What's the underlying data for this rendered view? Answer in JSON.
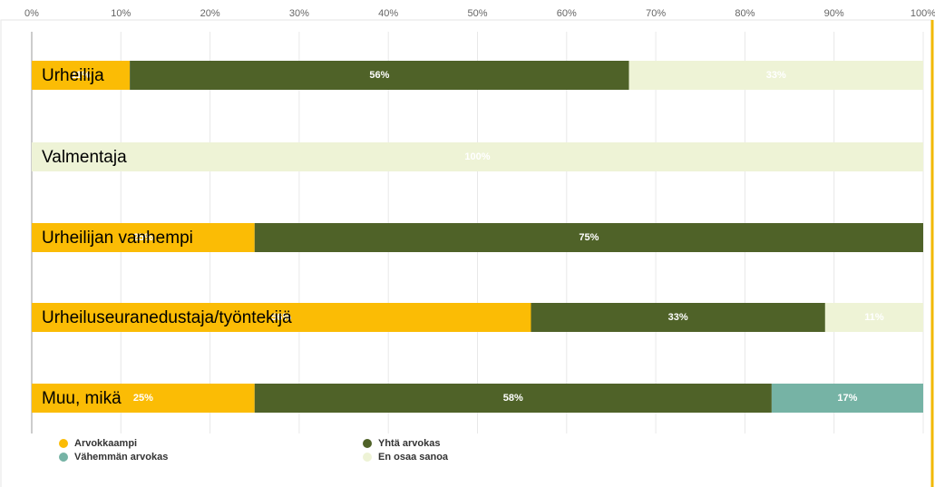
{
  "chart_data": {
    "type": "stacked-bar",
    "categories": [
      "Urheilija",
      "Valmentaja",
      "Urheilijan vanhempi",
      "Urheiluseuranedustaja/työntekijä",
      "Muu, mikä"
    ],
    "series": [
      {
        "name": "Arvokkaampi",
        "color": "#fbbc05",
        "values": [
          11,
          0,
          25,
          56,
          25
        ],
        "value_labels": [
          "11%",
          null,
          "25%",
          "56%",
          "25%"
        ]
      },
      {
        "name": "Yhtä arvokas",
        "color": "#4f6228",
        "values": [
          56,
          0,
          75,
          33,
          58
        ],
        "value_labels": [
          "56%",
          null,
          "75%",
          "33%",
          "58%"
        ]
      },
      {
        "name": "Vähemmän arvokas",
        "color": "#76b3a5",
        "values": [
          0,
          0,
          0,
          0,
          17
        ],
        "value_labels": [
          null,
          null,
          null,
          null,
          "17%"
        ]
      },
      {
        "name": "En osaa sanoa",
        "color": "#eef3d6",
        "values": [
          33,
          100,
          0,
          11,
          0
        ],
        "value_labels": [
          "33%",
          "100%",
          null,
          "11%",
          null
        ]
      }
    ],
    "xlim": [
      0,
      100
    ],
    "xticks": [
      {
        "value": 0,
        "label": "0%"
      },
      {
        "value": 10,
        "label": "10%"
      },
      {
        "value": 20,
        "label": "20%"
      },
      {
        "value": 30,
        "label": "30%"
      },
      {
        "value": 40,
        "label": "40%"
      },
      {
        "value": 50,
        "label": "50%"
      },
      {
        "value": 60,
        "label": "60%"
      },
      {
        "value": 70,
        "label": "70%"
      },
      {
        "value": 80,
        "label": "80%"
      },
      {
        "value": 90,
        "label": "90%"
      },
      {
        "value": 100,
        "label": "100%"
      }
    ],
    "grid": true
  }
}
